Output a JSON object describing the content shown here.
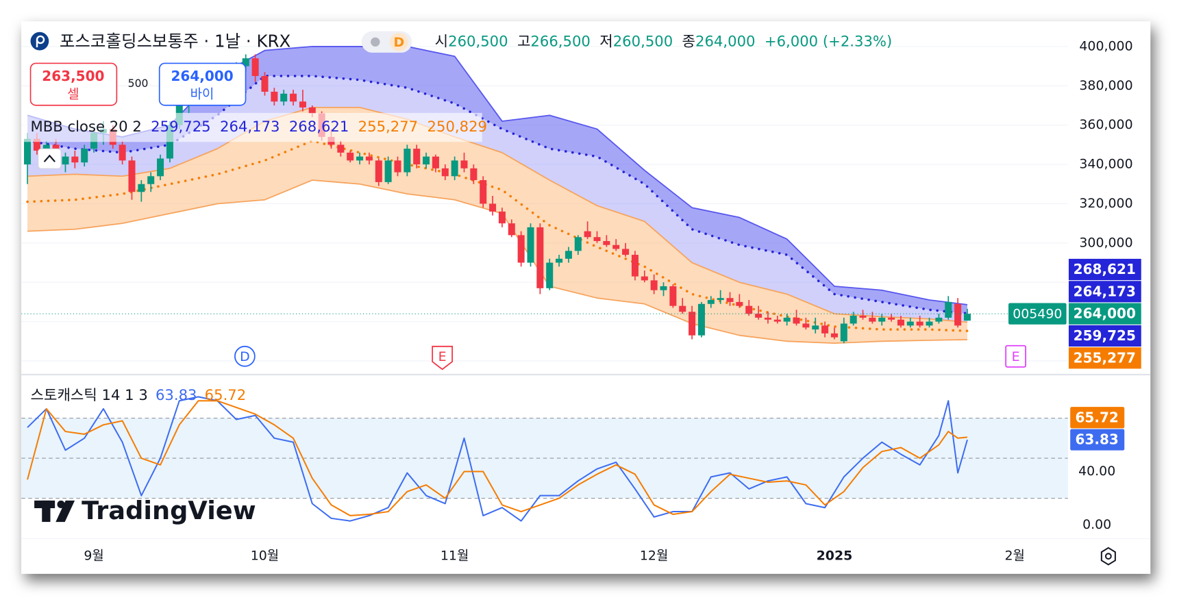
{
  "ui": {
    "sell_price": "263,500",
    "sell_label": "셀",
    "spread": "500",
    "buy_price": "264,000",
    "buy_label": "바이",
    "watermark": "TradingView",
    "symbol_tag": "005490"
  },
  "chart_data": {
    "type": "candlestick",
    "title": "포스코홀딩스보통주 · 1날 · KRX",
    "interval_badge": "D",
    "ohlc_legend": [
      {
        "label": "시",
        "value": "260,500"
      },
      {
        "label": "고",
        "value": "266,500"
      },
      {
        "label": "저",
        "value": "260,500"
      },
      {
        "label": "종",
        "value": "264,000"
      }
    ],
    "change": "+6,000 (+2.33%)",
    "up_color": "#089981",
    "down_color": "#f23645",
    "open": [
      340000,
      353000,
      347000,
      350000,
      340000,
      344000,
      341000,
      348000,
      356000,
      358000,
      350000,
      342000,
      326000,
      330000,
      334000,
      343000,
      360000,
      370000,
      375000,
      379000,
      377000,
      383000,
      386000,
      390000,
      394000,
      385000,
      377000,
      372000,
      376000,
      372000,
      369000,
      366000,
      354000,
      350000,
      346000,
      342000,
      344000,
      342000,
      331000,
      342000,
      336000,
      348000,
      340000,
      344000,
      338000,
      334000,
      342000,
      338000,
      332000,
      320000,
      316000,
      310000,
      304000,
      290000,
      308000,
      277000,
      290000,
      292000,
      296000,
      306000,
      303000,
      301000,
      299000,
      297000,
      294000,
      283000,
      281000,
      276000,
      278000,
      268000,
      265000,
      253000,
      269000,
      271000,
      272000,
      270000,
      268000,
      264000,
      262000,
      261000,
      260000,
      262000,
      259000,
      256000,
      258000,
      254000,
      250000,
      259000,
      263000,
      262000,
      260000,
      262000,
      261000,
      258000,
      260000,
      258000,
      260000,
      262000,
      269000,
      260500
    ],
    "high": [
      356000,
      356000,
      352000,
      353000,
      346000,
      347000,
      350000,
      358000,
      362000,
      360000,
      352000,
      344000,
      332000,
      336000,
      345000,
      362000,
      372000,
      378000,
      382000,
      383000,
      385000,
      388000,
      392000,
      396000,
      396000,
      387000,
      379000,
      378000,
      378000,
      378000,
      370000,
      367000,
      358000,
      352000,
      347000,
      346000,
      346000,
      343000,
      344000,
      344000,
      350000,
      350000,
      346000,
      345000,
      340000,
      344000,
      346000,
      340000,
      334000,
      324000,
      318000,
      312000,
      306000,
      310000,
      310000,
      292000,
      294000,
      298000,
      304000,
      311000,
      306000,
      304000,
      302000,
      300000,
      296000,
      286000,
      284000,
      280000,
      279000,
      272000,
      268000,
      270000,
      273000,
      276000,
      275000,
      274000,
      271000,
      268000,
      265000,
      263000,
      264000,
      266000,
      262000,
      262000,
      260000,
      257000,
      262000,
      265000,
      266000,
      265000,
      264000,
      264000,
      263000,
      262000,
      263000,
      262000,
      264000,
      273000,
      272000,
      266500
    ],
    "low": [
      330000,
      345000,
      340000,
      338000,
      336000,
      338000,
      339000,
      346000,
      350000,
      348000,
      340000,
      322000,
      321000,
      326000,
      332000,
      341000,
      358000,
      366000,
      372000,
      374000,
      375000,
      379000,
      383000,
      387000,
      382000,
      375000,
      370000,
      370000,
      370000,
      367000,
      364000,
      352000,
      348000,
      344000,
      341000,
      340000,
      340000,
      329000,
      330000,
      334000,
      334000,
      338000,
      338000,
      336000,
      332000,
      332000,
      336000,
      330000,
      318000,
      314000,
      308000,
      303000,
      288000,
      288000,
      274000,
      276000,
      288000,
      290000,
      294000,
      302000,
      300000,
      298000,
      296000,
      293000,
      281000,
      280000,
      274000,
      273000,
      267000,
      264000,
      251000,
      252000,
      267000,
      269000,
      268000,
      267000,
      263000,
      261000,
      259000,
      259000,
      258000,
      258000,
      256000,
      254000,
      252000,
      251000,
      249000,
      258000,
      261000,
      259000,
      258000,
      260000,
      257000,
      257000,
      257000,
      257000,
      259000,
      261000,
      257000,
      260500
    ],
    "close": [
      353000,
      347000,
      350000,
      340000,
      344000,
      341000,
      348000,
      356000,
      358000,
      350000,
      342000,
      326000,
      330000,
      334000,
      343000,
      360000,
      370000,
      375000,
      379000,
      377000,
      383000,
      386000,
      390000,
      394000,
      385000,
      377000,
      372000,
      376000,
      372000,
      369000,
      366000,
      354000,
      350000,
      346000,
      342000,
      344000,
      342000,
      331000,
      342000,
      336000,
      348000,
      340000,
      344000,
      338000,
      334000,
      342000,
      338000,
      332000,
      320000,
      316000,
      310000,
      304000,
      290000,
      308000,
      277000,
      290000,
      292000,
      296000,
      303000,
      303000,
      301000,
      299000,
      297000,
      294000,
      283000,
      281000,
      276000,
      278000,
      268000,
      265000,
      253000,
      269000,
      271000,
      272000,
      270000,
      268000,
      264000,
      262000,
      261000,
      260000,
      262000,
      259000,
      257000,
      258000,
      254000,
      252000,
      259000,
      263000,
      262000,
      260000,
      262000,
      261000,
      258000,
      260000,
      258000,
      260000,
      262000,
      270000,
      258000,
      264000
    ],
    "last_price_label": "264,000",
    "xlim": [
      -0.64,
      109.6
    ],
    "xticks": [
      {
        "value": 7,
        "label": "9월"
      },
      {
        "value": 25,
        "label": "10월"
      },
      {
        "value": 45,
        "label": "11월"
      },
      {
        "value": 66,
        "label": "12월"
      },
      {
        "value": 85,
        "label": "2025",
        "bold": true
      },
      {
        "value": 104,
        "label": "2월"
      }
    ],
    "ylim": [
      233400,
      412800
    ],
    "yticks": [
      {
        "value": 300000,
        "label": "300,000"
      },
      {
        "value": 320000,
        "label": "320,000"
      },
      {
        "value": 340000,
        "label": "340,000"
      },
      {
        "value": 360000,
        "label": "360,000"
      },
      {
        "value": 380000,
        "label": "380,000"
      },
      {
        "value": 400000,
        "label": "400,000"
      }
    ],
    "ygrid": [
      240000,
      260000,
      280000,
      300000,
      320000,
      340000,
      360000,
      380000,
      400000
    ],
    "overlay": {
      "label": "MBB close 20 2",
      "x": [
        0,
        5,
        10,
        15,
        20,
        25,
        30,
        35,
        40,
        45,
        50,
        55,
        60,
        65,
        70,
        75,
        80,
        85,
        90,
        95,
        99
      ],
      "series": [
        {
          "color": "#2424d8",
          "line_color": "#f7a35c",
          "last_label": "259,725",
          "axis_tag": true,
          "values": [
            334000,
            335000,
            334000,
            338000,
            348000,
            362000,
            369000,
            369000,
            363000,
            354000,
            346000,
            332000,
            319000,
            311000,
            290000,
            280000,
            274000,
            264000,
            262500,
            261400,
            259725
          ]
        },
        {
          "color": "#2424d8",
          "dotted": true,
          "last_label": "264,173",
          "axis_tag": true,
          "values": [
            352000,
            348000,
            346000,
            350000,
            365000,
            385000,
            385000,
            383000,
            379000,
            371000,
            358000,
            348000,
            344000,
            330000,
            307000,
            299000,
            294000,
            274000,
            270000,
            266000,
            264173
          ]
        },
        {
          "color": "#2424d8",
          "line_color": "#5656ee",
          "last_label": "268,621",
          "axis_tag": true,
          "values": [
            365000,
            358000,
            354000,
            360000,
            385000,
            398000,
            400000,
            400000,
            400000,
            395000,
            362000,
            365000,
            358000,
            337000,
            318000,
            313000,
            302000,
            278000,
            276000,
            271000,
            268621
          ]
        },
        {
          "color": "#f57c00",
          "dotted": true,
          "last_label": "255,277",
          "axis_tag": true,
          "values": [
            321000,
            322000,
            325000,
            330000,
            335000,
            342000,
            352000,
            346000,
            340000,
            335000,
            327000,
            309000,
            298000,
            288000,
            274000,
            268000,
            262500,
            257500,
            256000,
            256000,
            255277
          ]
        },
        {
          "color": "#f57c00",
          "line_color": "#f7a35c",
          "last_label": "250,829",
          "values": [
            306000,
            307000,
            310000,
            315000,
            320000,
            322000,
            332000,
            330000,
            325000,
            322000,
            315000,
            278000,
            272000,
            269000,
            259000,
            253000,
            250000,
            249000,
            250000,
            250500,
            250829
          ]
        }
      ]
    },
    "events": [
      {
        "x": 22.9,
        "label": "D",
        "color": "#2962ff",
        "shape": "circle"
      },
      {
        "x": 43.7,
        "label": "E",
        "color": "#f23645",
        "shape": "shield"
      },
      {
        "x": 104.1,
        "label": "E",
        "color": "#e040fb",
        "shape": "square"
      }
    ],
    "stochastic": {
      "type": "line",
      "label": "스토캐스틱 14 1 3",
      "x": [
        0,
        2,
        4,
        6,
        8,
        10,
        12,
        14,
        16,
        18,
        20,
        22,
        24,
        26,
        28,
        30,
        32,
        34,
        36,
        38,
        40,
        42,
        44,
        46,
        48,
        50,
        52,
        54,
        56,
        58,
        60,
        62,
        64,
        66,
        68,
        70,
        72,
        74,
        76,
        78,
        80,
        82,
        84,
        86,
        88,
        90,
        92,
        94,
        96,
        97,
        98,
        99
      ],
      "series": [
        {
          "color": "#3d6cf0",
          "last_label": "63.83",
          "values": [
            73,
            87,
            56,
            65,
            87,
            62,
            22,
            50,
            93,
            96,
            93,
            79,
            82,
            65,
            62,
            16,
            5,
            3,
            7,
            13,
            39,
            22,
            16,
            65,
            7,
            13,
            3,
            22,
            22,
            33,
            42,
            47,
            27,
            6,
            10,
            10,
            36,
            39,
            27,
            33,
            36,
            16,
            13,
            36,
            50,
            62,
            53,
            45,
            67,
            93,
            39,
            63.83
          ]
        },
        {
          "color": "#f57c00",
          "last_label": "65.72",
          "values": [
            34,
            87,
            70,
            68,
            75,
            78,
            50,
            45,
            75,
            93,
            93,
            88,
            83,
            75,
            65,
            35,
            15,
            7,
            8,
            10,
            25,
            30,
            20,
            40,
            40,
            15,
            10,
            15,
            20,
            30,
            38,
            45,
            38,
            15,
            8,
            10,
            25,
            38,
            35,
            32,
            33,
            30,
            15,
            25,
            43,
            55,
            58,
            50,
            60,
            70,
            65,
            65.72
          ]
        }
      ],
      "ylim": [
        -9.7,
        112
      ],
      "yticks": [
        {
          "value": 0,
          "label": "0.00"
        },
        {
          "value": 40,
          "label": "40.00"
        }
      ],
      "levels": [
        80,
        50,
        20
      ]
    }
  }
}
